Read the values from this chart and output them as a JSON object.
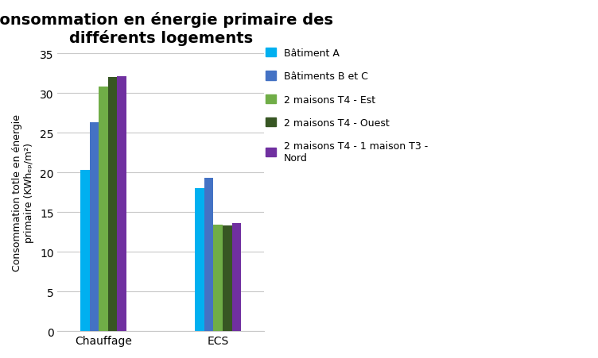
{
  "title": "Consommation en énergie primaire des\ndifférents logements",
  "ylabel": "Consommation totle en énergie\nprimaire (KWhₑₚ/m²)",
  "categories": [
    "Chauffage",
    "ECS"
  ],
  "series": [
    {
      "label": "Bâtiment A",
      "color": "#00B0F0",
      "values": [
        20.3,
        18.0
      ]
    },
    {
      "label": "Bâtiments B et C",
      "color": "#4472C4",
      "values": [
        26.3,
        19.3
      ]
    },
    {
      "label": "2 maisons T4 - Est",
      "color": "#70AD47",
      "values": [
        30.8,
        13.4
      ]
    },
    {
      "label": "2 maisons T4 - Ouest",
      "color": "#375623",
      "values": [
        32.0,
        13.3
      ]
    },
    {
      "label": "2 maisons T4 - 1 maison T3 -\nNord",
      "color": "#7030A0",
      "values": [
        32.1,
        13.6
      ]
    }
  ],
  "ylim": [
    0,
    35
  ],
  "yticks": [
    0,
    5,
    10,
    15,
    20,
    25,
    30,
    35
  ],
  "background_color": "#FFFFFF",
  "title_fontsize": 14,
  "ylabel_fontsize": 9,
  "tick_fontsize": 10,
  "legend_fontsize": 9,
  "bar_width": 0.12,
  "group_centers": [
    1.0,
    2.5
  ]
}
